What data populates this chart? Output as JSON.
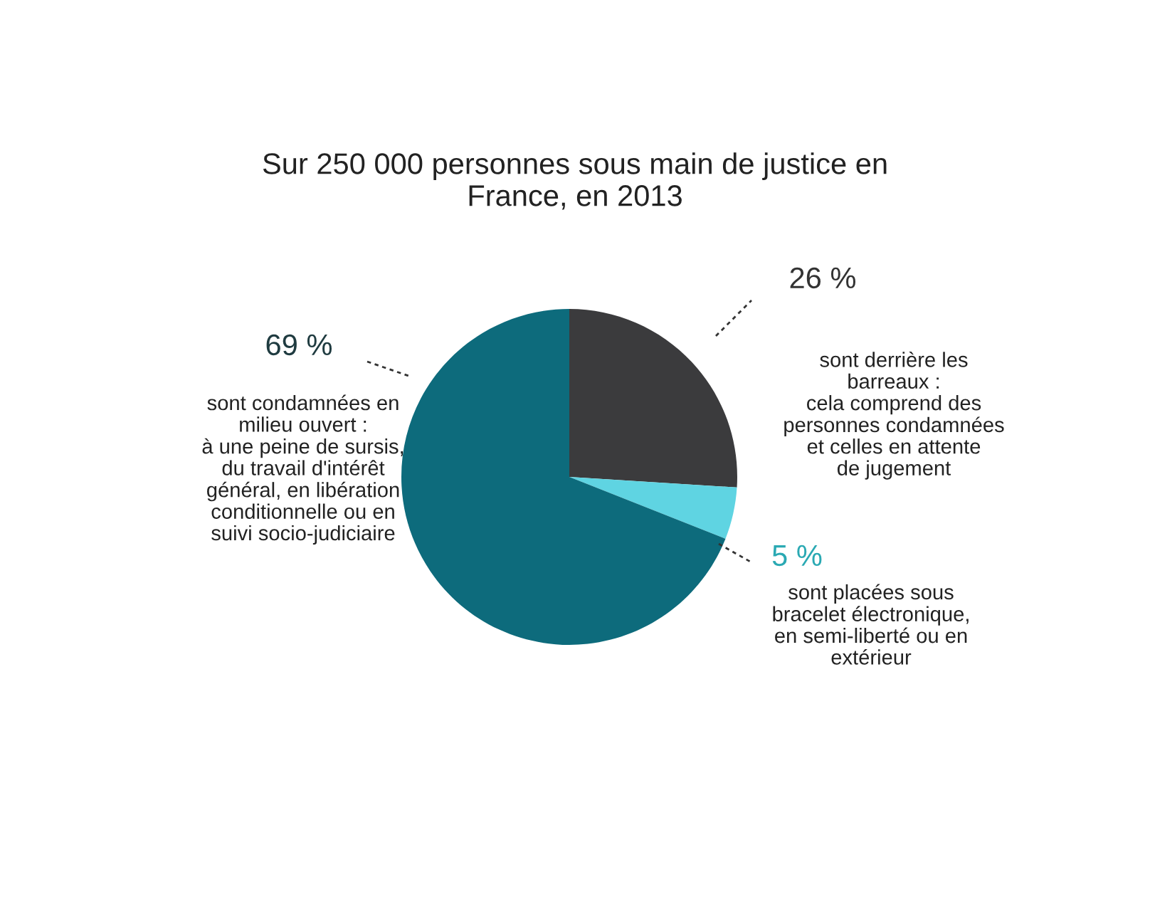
{
  "chart_data": {
    "type": "pie",
    "title": "Sur 250 000 personnes sous main de justice en\nFrance, en 2013",
    "categories": [
      "sont derrière les\nbarreaux :\ncela comprend des\npersonnes condamnées\net celles en attente\nde jugement",
      "sont placées sous\nbracelet électronique,\nen semi-liberté ou en\nextérieur",
      "sont condamnées en\nmilieu ouvert :\nà une peine de sursis,\ndu travail d'intérêt\ngénéral, en libération\nconditionnelle ou en\nsuivi socio-judiciaire"
    ],
    "values": [
      26,
      5,
      69
    ],
    "colors": [
      "#3b3b3d",
      "#5fd4e2",
      "#0d6b7c"
    ],
    "value_labels": [
      "26 %",
      "5 %",
      "69 %"
    ]
  }
}
